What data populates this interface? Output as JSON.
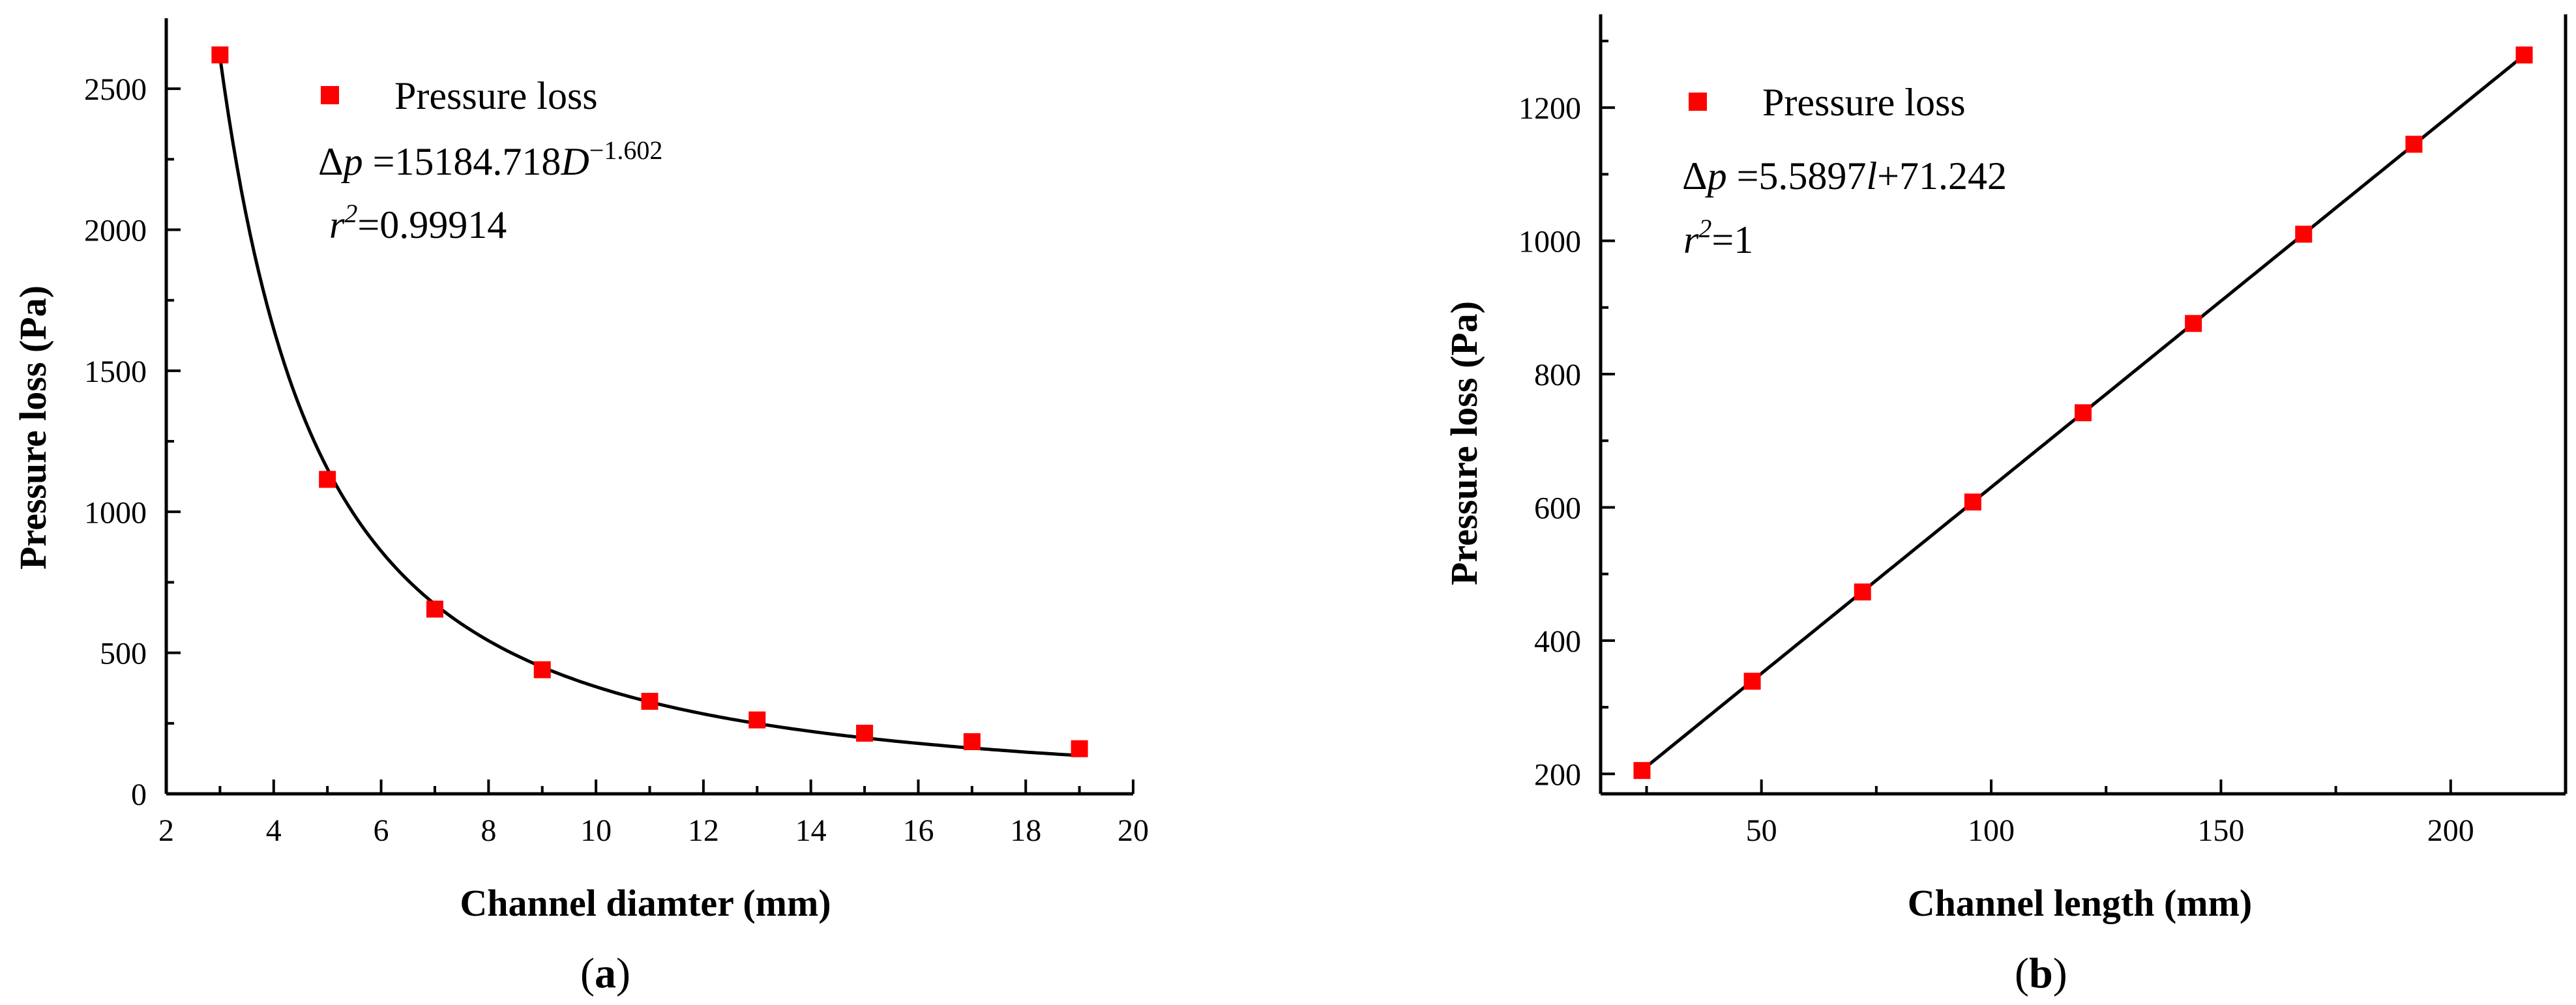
{
  "chart_data": [
    {
      "type": "scatter",
      "panel_label": "a",
      "xlabel": "Channel diamter (mm)",
      "ylabel": "Pressure loss (Pa)",
      "xlim": [
        2,
        20
      ],
      "ylim": [
        0,
        2750
      ],
      "x_ticks": [
        2,
        4,
        6,
        8,
        10,
        12,
        14,
        16,
        18,
        20
      ],
      "y_ticks": [
        0,
        500,
        1000,
        1500,
        2000,
        2500
      ],
      "series": [
        {
          "name": "Pressure loss",
          "marker": "square",
          "color": "#ff0000",
          "x": [
            3,
            5,
            7,
            9,
            11,
            13,
            15,
            17,
            19
          ],
          "y": [
            2620,
            1115,
            655,
            440,
            328,
            262,
            215,
            185,
            160
          ]
        }
      ],
      "fit": {
        "type": "power",
        "a": 15184.718,
        "b": -1.602,
        "x_range": [
          3,
          19
        ],
        "equation_text": {
          "delta": "Δ",
          "var": "p",
          "mid": " =15184.718",
          "x": "D",
          "exp": "−1.602"
        },
        "r2_text": {
          "r": "r",
          "exp": "2",
          "val": "=0.99914"
        }
      }
    },
    {
      "type": "scatter",
      "panel_label": "b",
      "xlabel": "Channel length (mm)",
      "ylabel": "Pressure loss (Pa)",
      "xlim": [
        15,
        225
      ],
      "ylim": [
        170,
        1340
      ],
      "x_ticks": [
        50,
        100,
        150,
        200
      ],
      "y_ticks": [
        200,
        400,
        600,
        800,
        1000,
        1200
      ],
      "series": [
        {
          "name": "Pressure loss",
          "marker": "square",
          "color": "#ff0000",
          "x": [
            24,
            48,
            72,
            96,
            120,
            144,
            168,
            192,
            216
          ],
          "y": [
            205,
            339,
            473,
            608,
            742,
            876,
            1010,
            1145,
            1279
          ]
        }
      ],
      "fit": {
        "type": "linear",
        "slope": 5.5897,
        "intercept": 71.242,
        "x_range": [
          24,
          216
        ],
        "equation_text": {
          "delta": "Δ",
          "var": "p",
          "mid": " =5.5897",
          "x": "l",
          "tail": "+71.242"
        },
        "r2_text": {
          "r": "r",
          "exp": "2",
          "val": "=1"
        }
      }
    }
  ],
  "colors": {
    "marker": "#ff0000",
    "axis": "#000000",
    "fit_line": "#000000"
  }
}
